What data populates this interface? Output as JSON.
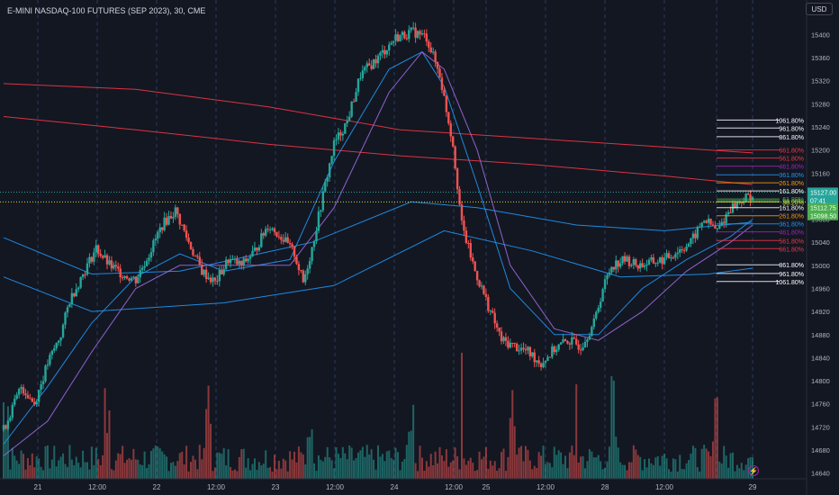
{
  "header": {
    "title": "E-MINI NASDAQ-100 FUTURES (SEP 2023), 30, CME",
    "currency_button": "USD"
  },
  "colors": {
    "background": "#131722",
    "up": "#26a69a",
    "down": "#ef5350",
    "grid_v": "#2a3a5e",
    "axis_text": "#b2b5be",
    "ma_red": "#f23645",
    "ma_blue": "#2196f3",
    "ma_purple": "#9c6ade",
    "price_tag_teal": "#26a69a",
    "price_tag_green": "#4caf50",
    "price_tag_lime": "#cddc39"
  },
  "bolt_icon": "lightning-icon",
  "chart_data": {
    "type": "candlestick",
    "y_axis": {
      "ticks": [
        15440,
        15400,
        15360,
        15320,
        15280,
        15240,
        15200,
        15160,
        15120,
        15080,
        15040,
        15000,
        14960,
        14920,
        14880,
        14840,
        14800,
        14760,
        14720,
        14680,
        14640
      ],
      "ylim": [
        14630,
        15460
      ],
      "side": "right"
    },
    "x_axis": {
      "tick_labels": [
        "21",
        "12:00",
        "22",
        "12:00",
        "23",
        "12:00",
        "24",
        "12:00",
        "25",
        "12:00",
        "28",
        "12:00",
        "29"
      ]
    },
    "series": [
      {
        "kind": "ohlc",
        "anchors": [
          [
            0,
            14715
          ],
          [
            8,
            14790
          ],
          [
            14,
            14760
          ],
          [
            20,
            14830
          ],
          [
            26,
            14880
          ],
          [
            30,
            14940
          ],
          [
            36,
            14985
          ],
          [
            42,
            15030
          ],
          [
            48,
            15000
          ],
          [
            54,
            14985
          ],
          [
            60,
            14975
          ],
          [
            66,
            15020
          ],
          [
            72,
            15070
          ],
          [
            78,
            15095
          ],
          [
            84,
            15040
          ],
          [
            90,
            14990
          ],
          [
            96,
            14970
          ],
          [
            102,
            15010
          ],
          [
            108,
            15000
          ],
          [
            114,
            15025
          ],
          [
            120,
            15070
          ],
          [
            126,
            15050
          ],
          [
            132,
            15020
          ],
          [
            136,
            14970
          ],
          [
            140,
            15030
          ],
          [
            146,
            15140
          ],
          [
            150,
            15210
          ],
          [
            156,
            15250
          ],
          [
            162,
            15330
          ],
          [
            170,
            15360
          ],
          [
            178,
            15395
          ],
          [
            186,
            15405
          ],
          [
            192,
            15395
          ],
          [
            198,
            15330
          ],
          [
            204,
            15210
          ],
          [
            208,
            15070
          ],
          [
            214,
            14990
          ],
          [
            220,
            14930
          ],
          [
            226,
            14870
          ],
          [
            232,
            14860
          ],
          [
            238,
            14850
          ],
          [
            244,
            14830
          ],
          [
            250,
            14855
          ],
          [
            256,
            14870
          ],
          [
            262,
            14860
          ],
          [
            268,
            14900
          ],
          [
            272,
            14960
          ],
          [
            276,
            15000
          ],
          [
            282,
            15010
          ],
          [
            288,
            15000
          ],
          [
            294,
            15005
          ],
          [
            300,
            15010
          ],
          [
            306,
            15025
          ],
          [
            312,
            15040
          ],
          [
            318,
            15080
          ],
          [
            324,
            15060
          ],
          [
            330,
            15100
          ],
          [
            336,
            15115
          ],
          [
            340,
            15122
          ]
        ]
      },
      {
        "kind": "volume"
      }
    ],
    "moving_averages": [
      {
        "color": "#f23645",
        "points": [
          [
            0,
            15315
          ],
          [
            60,
            15305
          ],
          [
            120,
            15275
          ],
          [
            180,
            15235
          ],
          [
            240,
            15220
          ],
          [
            300,
            15205
          ],
          [
            340,
            15195
          ]
        ]
      },
      {
        "color": "#f23645",
        "points": [
          [
            0,
            15258
          ],
          [
            60,
            15235
          ],
          [
            120,
            15210
          ],
          [
            180,
            15190
          ],
          [
            240,
            15175
          ],
          [
            300,
            15155
          ],
          [
            340,
            15140
          ]
        ]
      },
      {
        "color": "#2196f3",
        "points": [
          [
            0,
            15048
          ],
          [
            40,
            14985
          ],
          [
            80,
            14990
          ],
          [
            140,
            15040
          ],
          [
            185,
            15110
          ],
          [
            215,
            15100
          ],
          [
            260,
            15070
          ],
          [
            300,
            15060
          ],
          [
            340,
            15075
          ]
        ]
      },
      {
        "color": "#2196f3",
        "points": [
          [
            0,
            14980
          ],
          [
            40,
            14920
          ],
          [
            100,
            14935
          ],
          [
            150,
            14965
          ],
          [
            200,
            15060
          ],
          [
            240,
            15025
          ],
          [
            280,
            14980
          ],
          [
            320,
            14985
          ],
          [
            340,
            14995
          ]
        ]
      },
      {
        "color": "#2196f3",
        "points": [
          [
            0,
            14690
          ],
          [
            20,
            14790
          ],
          [
            40,
            14900
          ],
          [
            60,
            14980
          ],
          [
            80,
            15020
          ],
          [
            100,
            14990
          ],
          [
            130,
            15010
          ],
          [
            150,
            15180
          ],
          [
            175,
            15340
          ],
          [
            190,
            15370
          ],
          [
            200,
            15310
          ],
          [
            215,
            15140
          ],
          [
            230,
            14960
          ],
          [
            250,
            14880
          ],
          [
            270,
            14880
          ],
          [
            290,
            14960
          ],
          [
            310,
            15010
          ],
          [
            330,
            15050
          ],
          [
            340,
            15080
          ]
        ]
      },
      {
        "color": "#9c6ade",
        "points": [
          [
            0,
            14670
          ],
          [
            20,
            14730
          ],
          [
            40,
            14850
          ],
          [
            60,
            14960
          ],
          [
            80,
            15000
          ],
          [
            100,
            15000
          ],
          [
            130,
            15000
          ],
          [
            150,
            15100
          ],
          [
            175,
            15300
          ],
          [
            190,
            15370
          ],
          [
            200,
            15340
          ],
          [
            215,
            15200
          ],
          [
            230,
            15000
          ],
          [
            250,
            14890
          ],
          [
            270,
            14870
          ],
          [
            290,
            14920
          ],
          [
            310,
            14990
          ],
          [
            330,
            15040
          ],
          [
            340,
            15070
          ]
        ]
      }
    ],
    "fib_levels": {
      "upper": [
        {
          "label": "1061.80%",
          "value": 15252,
          "color": "#ffffff"
        },
        {
          "label": "961.80%",
          "value": 15238,
          "color": "#ffffff"
        },
        {
          "label": "861.80%",
          "value": 15223,
          "color": "#ffffff"
        },
        {
          "label": "661.80%",
          "value": 15200,
          "color": "#f23645"
        },
        {
          "label": "561.80%",
          "value": 15186,
          "color": "#f23645"
        },
        {
          "label": "461.80%",
          "value": 15172,
          "color": "#9c27b0"
        },
        {
          "label": "361.80%",
          "value": 15157,
          "color": "#2196f3"
        },
        {
          "label": "261.80%",
          "value": 15143,
          "color": "#ff9800"
        },
        {
          "label": "161.80%",
          "value": 15129,
          "color": "#ffffff"
        },
        {
          "label": "61.80%",
          "value": 15115,
          "color": "#4caf50"
        },
        {
          "label": "50.00%",
          "value": 15112,
          "color": "#4caf50"
        },
        {
          "label": "38.20%",
          "value": 15110,
          "color": "#cddc39"
        }
      ],
      "lower": [
        {
          "label": "161.80%",
          "value": 15100,
          "color": "#ffffff"
        },
        {
          "label": "261.80%",
          "value": 15086,
          "color": "#ff9800"
        },
        {
          "label": "361.80%",
          "value": 15072,
          "color": "#2196f3"
        },
        {
          "label": "461.80%",
          "value": 15058,
          "color": "#9c27b0"
        },
        {
          "label": "561.80%",
          "value": 15043,
          "color": "#f23645"
        },
        {
          "label": "661.80%",
          "value": 15029,
          "color": "#f23645"
        },
        {
          "label": "861.80%",
          "value": 15001,
          "color": "#ffffff"
        },
        {
          "label": "961.80%",
          "value": 14986,
          "color": "#ffffff"
        },
        {
          "label": "1061.80%",
          "value": 14972,
          "color": "#ffffff"
        }
      ]
    },
    "price_tags": [
      {
        "label": "15127.00",
        "value": 15127,
        "color": "#26a69a"
      },
      {
        "label": "07:41",
        "value": 15113,
        "color": "#26a69a"
      },
      {
        "label": "15112.75",
        "value": 15100,
        "color": "#4caf50"
      },
      {
        "label": "15098.50",
        "value": 15086,
        "color": "#4caf50"
      }
    ],
    "grid": {
      "vertical_dashed": true,
      "horizontal": false
    },
    "legend": "none"
  }
}
